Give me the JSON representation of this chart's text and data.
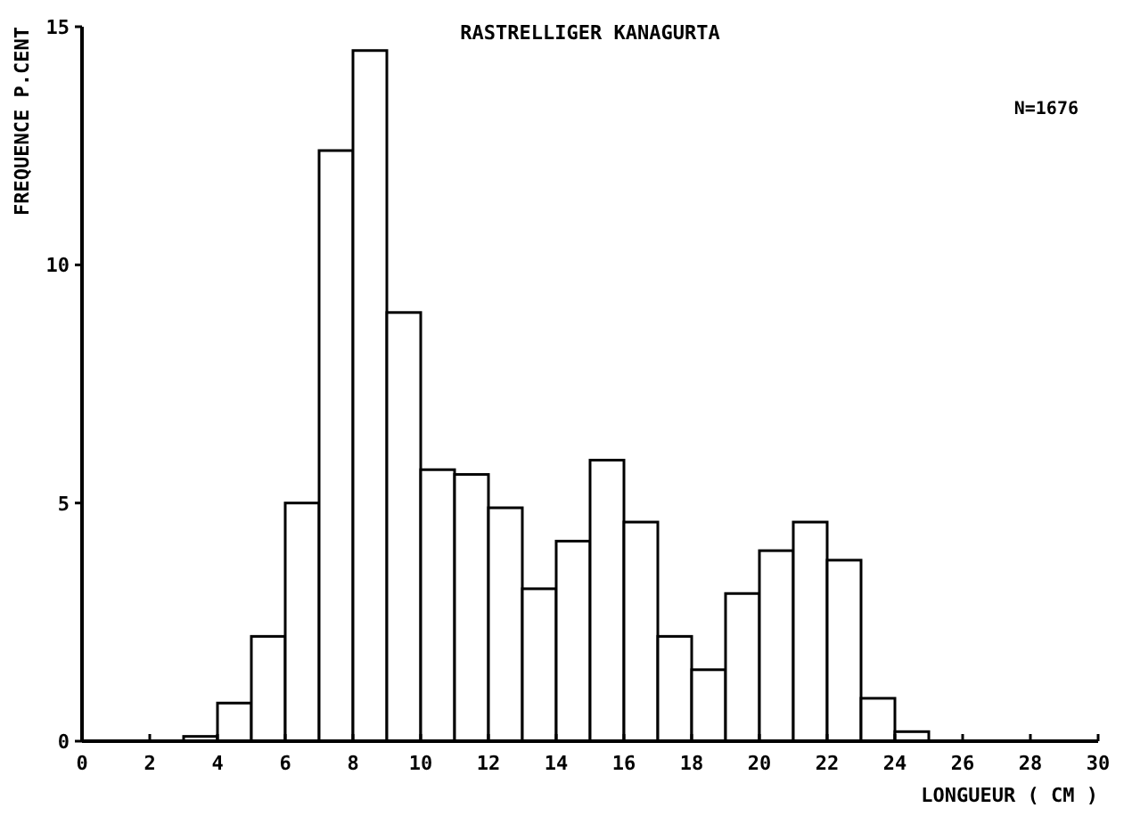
{
  "chart_data": {
    "type": "histogram",
    "title": "RASTRELLIGER KANAGURTA",
    "xlabel": "LONGUEUR ( CM )",
    "ylabel": "FREQUENCE P.CENT",
    "annotations": [
      "N=1676"
    ],
    "bins": [
      3,
      4,
      5,
      6,
      7,
      8,
      9,
      10,
      11,
      12,
      13,
      14,
      15,
      16,
      17,
      18,
      19,
      20,
      21,
      22,
      23,
      24,
      25
    ],
    "values": [
      0.1,
      0.8,
      2.2,
      5,
      12.4,
      14.5,
      9,
      5.7,
      5.6,
      4.9,
      3.2,
      4.2,
      5.9,
      4.6,
      2.2,
      1.5,
      3.1,
      4,
      4.6,
      3.8,
      0.9,
      0.2
    ],
    "color": "#ffffff",
    "xlim": [
      0,
      30
    ],
    "ylim": [
      0,
      15
    ],
    "xticks": [
      0,
      2,
      4,
      6,
      8,
      10,
      12,
      14,
      16,
      18,
      20,
      22,
      24,
      26,
      28,
      30
    ],
    "yticks": [
      0,
      5,
      10,
      15
    ],
    "grid": false
  }
}
